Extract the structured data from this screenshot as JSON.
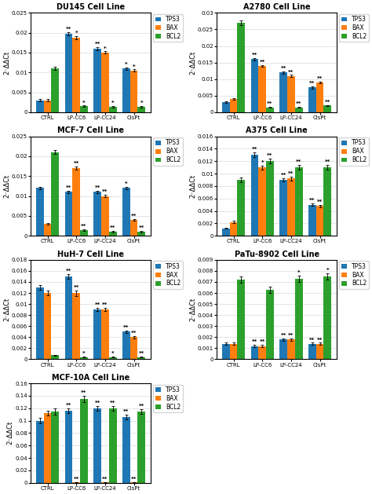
{
  "chart_data": [
    {
      "type": "bar",
      "title": "DU145 Cell Line",
      "y_label": "2⁻ΔΔCt",
      "categories": [
        "CTRL",
        "LP-CC6",
        "LP-CC24",
        "CisPt"
      ],
      "series": [
        {
          "name": "TPS3",
          "values": [
            0.003,
            0.0197,
            0.016,
            0.011
          ],
          "errors": [
            0.0003,
            0.0004,
            0.0004,
            0.0003
          ],
          "annotations": [
            null,
            "**",
            "**",
            "*"
          ]
        },
        {
          "name": "BAX",
          "values": [
            0.003,
            0.0188,
            0.015,
            0.0105
          ],
          "errors": [
            0.0003,
            0.0004,
            0.0003,
            0.0003
          ],
          "annotations": [
            null,
            "*",
            "*",
            "*"
          ]
        },
        {
          "name": "BCL2",
          "values": [
            0.011,
            0.0015,
            0.0014,
            0.0014
          ],
          "errors": [
            0.0004,
            0.0002,
            0.0002,
            0.0002
          ],
          "annotations": [
            null,
            "*",
            "*",
            "*"
          ]
        }
      ],
      "ylim": [
        0,
        0.025
      ],
      "yticks": [
        0,
        0.005,
        0.01,
        0.015,
        0.02,
        0.025
      ],
      "grid": "y",
      "legend": "upper right"
    },
    {
      "type": "bar",
      "title": "A2780 Cell Line",
      "y_label": "2⁻ΔΔCt",
      "categories": [
        "CTRL",
        "LP-CC6",
        "LP-CC24",
        "CisPt"
      ],
      "series": [
        {
          "name": "TPS3",
          "values": [
            0.003,
            0.016,
            0.012,
            0.0075
          ],
          "errors": [
            0.0002,
            0.0004,
            0.0003,
            0.0003
          ],
          "annotations": [
            null,
            "**",
            "**",
            "**"
          ]
        },
        {
          "name": "BAX",
          "values": [
            0.004,
            0.014,
            0.011,
            0.009
          ],
          "errors": [
            0.0003,
            0.0003,
            0.0003,
            0.0003
          ],
          "annotations": [
            null,
            "**",
            "**",
            "**"
          ]
        },
        {
          "name": "BCL2",
          "values": [
            0.027,
            0.0015,
            0.0015,
            0.002
          ],
          "errors": [
            0.0007,
            0.0002,
            0.0002,
            0.0002
          ],
          "annotations": [
            null,
            "**",
            "**",
            "**"
          ]
        }
      ],
      "ylim": [
        0,
        0.03
      ],
      "yticks": [
        0,
        0.005,
        0.01,
        0.015,
        0.02,
        0.025,
        0.03
      ],
      "grid": "y",
      "legend": "upper right"
    },
    {
      "type": "bar",
      "title": "MCF-7 Cell Line",
      "y_label": "2⁻ΔΔCt",
      "categories": [
        "CTRL",
        "LP-CC6",
        "LP-CC24",
        "CisPt"
      ],
      "series": [
        {
          "name": "TPS3",
          "values": [
            0.012,
            0.011,
            0.011,
            0.012
          ],
          "errors": [
            0.0003,
            0.0003,
            0.0003,
            0.0003
          ],
          "annotations": [
            null,
            "**",
            "**",
            "*"
          ]
        },
        {
          "name": "BAX",
          "values": [
            0.003,
            0.017,
            0.01,
            0.004
          ],
          "errors": [
            0.0002,
            0.0004,
            0.0003,
            0.0002
          ],
          "annotations": [
            null,
            "**",
            "**",
            "**"
          ]
        },
        {
          "name": "BCL2",
          "values": [
            0.021,
            0.0015,
            0.001,
            0.001
          ],
          "errors": [
            0.0005,
            0.0002,
            0.0002,
            0.0002
          ],
          "annotations": [
            null,
            "**",
            "**",
            "**"
          ]
        }
      ],
      "ylim": [
        0,
        0.025
      ],
      "yticks": [
        0,
        0.005,
        0.01,
        0.015,
        0.02,
        0.025
      ],
      "grid": "y",
      "legend": "upper right"
    },
    {
      "type": "bar",
      "title": "A375 Cell Line",
      "y_label": "2⁻ΔΔCt",
      "categories": [
        "CTRL",
        "LP-CC6",
        "LP-CC24",
        "CisPt"
      ],
      "series": [
        {
          "name": "TPS3",
          "values": [
            0.0012,
            0.013,
            0.009,
            0.005
          ],
          "errors": [
            0.0001,
            0.0004,
            0.0003,
            0.0002
          ],
          "annotations": [
            null,
            "**",
            "**",
            "**"
          ]
        },
        {
          "name": "BAX",
          "values": [
            0.0022,
            0.011,
            0.0092,
            0.0048
          ],
          "errors": [
            0.0002,
            0.0003,
            0.0003,
            0.0002
          ],
          "annotations": [
            null,
            "*",
            "**",
            "**"
          ]
        },
        {
          "name": "BCL2",
          "values": [
            0.009,
            0.012,
            0.011,
            0.011
          ],
          "errors": [
            0.0004,
            0.0004,
            0.0004,
            0.0004
          ],
          "annotations": [
            null,
            "**",
            "**",
            "**"
          ]
        }
      ],
      "ylim": [
        0,
        0.016
      ],
      "yticks": [
        0,
        0.002,
        0.004,
        0.006,
        0.008,
        0.01,
        0.012,
        0.014,
        0.016
      ],
      "grid": "y",
      "legend": "upper right"
    },
    {
      "type": "bar",
      "title": "HuH-7 Cell Line",
      "y_label": "2⁻ΔΔCt",
      "categories": [
        "CTRL",
        "LP-CC6",
        "LP-CC24",
        "CisPt"
      ],
      "series": [
        {
          "name": "TPS3",
          "values": [
            0.013,
            0.015,
            0.009,
            0.005
          ],
          "errors": [
            0.0004,
            0.0004,
            0.0003,
            0.0002
          ],
          "annotations": [
            null,
            "**",
            "**",
            "**"
          ]
        },
        {
          "name": "BAX",
          "values": [
            0.012,
            0.012,
            0.009,
            0.004
          ],
          "errors": [
            0.0004,
            0.0005,
            0.0003,
            0.0002
          ],
          "annotations": [
            null,
            "**",
            "**",
            "**"
          ]
        },
        {
          "name": "BCL2",
          "values": [
            0.0007,
            0.0004,
            0.0004,
            0.0004
          ],
          "errors": [
            0.0001,
            0.0001,
            0.0001,
            0.0001
          ],
          "annotations": [
            null,
            "*",
            "*",
            "**"
          ]
        }
      ],
      "ylim": [
        0,
        0.018
      ],
      "yticks": [
        0,
        0.002,
        0.004,
        0.006,
        0.008,
        0.01,
        0.012,
        0.014,
        0.016,
        0.018
      ],
      "grid": "y",
      "legend": "upper right"
    },
    {
      "type": "bar",
      "title": "PaTu-8902 Cell Line",
      "y_label": "2⁻ΔΔCt",
      "categories": [
        "CTRL",
        "LP-CC6",
        "LP-CC24",
        "CisPt"
      ],
      "series": [
        {
          "name": "TPS3",
          "values": [
            0.0014,
            0.0012,
            0.0018,
            0.0014
          ],
          "errors": [
            0.0001,
            0.0001,
            0.0001,
            0.0001
          ],
          "annotations": [
            null,
            "**",
            "**",
            "**"
          ]
        },
        {
          "name": "BAX",
          "values": [
            0.0014,
            0.0012,
            0.0018,
            0.0014
          ],
          "errors": [
            0.0001,
            0.0001,
            0.0001,
            0.0001
          ],
          "annotations": [
            null,
            "**",
            "**",
            "**"
          ]
        },
        {
          "name": "BCL2",
          "values": [
            0.0072,
            0.0063,
            0.0073,
            0.0075
          ],
          "errors": [
            0.0003,
            0.0003,
            0.0003,
            0.0003
          ],
          "annotations": [
            null,
            null,
            "*",
            "*"
          ]
        }
      ],
      "ylim": [
        0,
        0.009
      ],
      "yticks": [
        0,
        0.001,
        0.002,
        0.003,
        0.004,
        0.005,
        0.006,
        0.007,
        0.008,
        0.009
      ],
      "grid": "y",
      "legend": "upper right"
    },
    {
      "type": "bar",
      "title": "MCF-10A Cell Line",
      "y_label": "2⁻ΔΔCt",
      "categories": [
        "CTRL",
        "LP-CC6",
        "LP-CC24",
        "CisPt"
      ],
      "series": [
        {
          "name": "TPS3",
          "values": [
            0.1,
            0.116,
            0.12,
            0.106
          ],
          "errors": [
            0.004,
            0.004,
            0.004,
            0.004
          ],
          "annotations": [
            null,
            "**",
            "**",
            "**"
          ]
        },
        {
          "name": "BAX",
          "values": [
            0.112,
            0.001,
            0.001,
            0.001
          ],
          "errors": [
            0.004,
            0.0001,
            0.0001,
            0.0001
          ],
          "annotations": [
            null,
            "**",
            "**",
            "**"
          ]
        },
        {
          "name": "BCL2",
          "values": [
            0.115,
            0.135,
            0.12,
            0.115
          ],
          "errors": [
            0.005,
            0.005,
            0.004,
            0.004
          ],
          "annotations": [
            null,
            "**",
            "**",
            "**"
          ]
        }
      ],
      "ylim": [
        0,
        0.16
      ],
      "yticks": [
        0,
        0.02,
        0.04,
        0.06,
        0.08,
        0.1,
        0.12,
        0.14,
        0.16
      ],
      "grid": "y",
      "legend": "upper right"
    }
  ]
}
